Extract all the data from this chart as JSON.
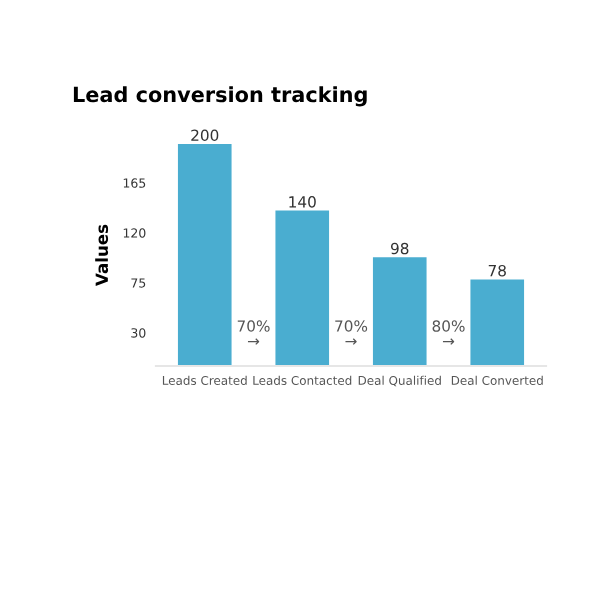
{
  "chart_data": {
    "type": "bar",
    "title": "Lead conversion tracking",
    "ylabel": "Values",
    "categories": [
      "Leads Created",
      "Leads Contacted",
      "Deal Qualified",
      "Deal Converted"
    ],
    "values": [
      200,
      140,
      98,
      78
    ],
    "data_labels": true,
    "color": "#4aadd0",
    "ylim": [
      0,
      200
    ],
    "yticks": [
      30,
      75,
      120,
      165
    ],
    "grid": false,
    "annotations": [
      "70%\n→",
      "70%\n→",
      "80%\n→"
    ]
  }
}
